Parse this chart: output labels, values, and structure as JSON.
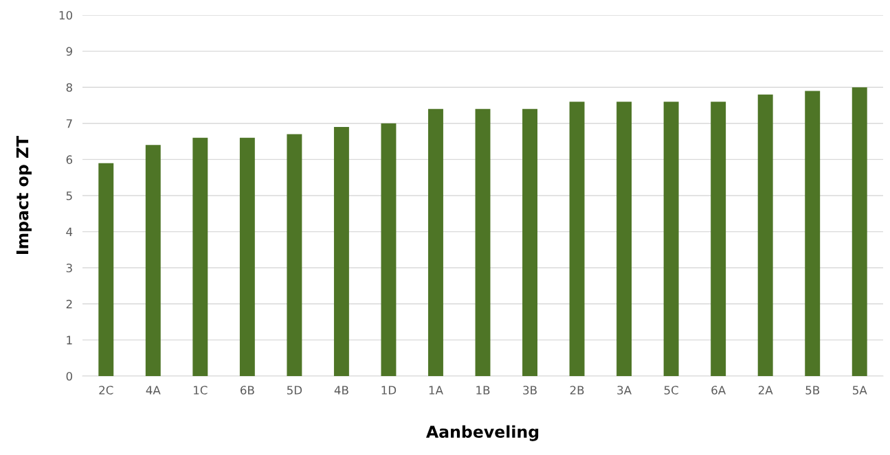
{
  "chart_data": {
    "type": "bar",
    "xlabel": "Aanbeveling",
    "ylabel": "Impact op ZT",
    "categories": [
      "2C",
      "4A",
      "1C",
      "6B",
      "5D",
      "4B",
      "1D",
      "1A",
      "1B",
      "3B",
      "2B",
      "3A",
      "5C",
      "6A",
      "2A",
      "5B",
      "5A"
    ],
    "values": [
      5.9,
      6.4,
      6.6,
      6.6,
      6.7,
      6.9,
      7.0,
      7.4,
      7.4,
      7.4,
      7.6,
      7.6,
      7.6,
      7.6,
      7.8,
      7.9,
      8.0
    ],
    "color": "#4e7526",
    "ylim": [
      0,
      10
    ],
    "yticks": [
      0,
      1,
      2,
      3,
      4,
      5,
      6,
      7,
      8,
      9,
      10
    ],
    "grid": "y",
    "legend": false
  }
}
